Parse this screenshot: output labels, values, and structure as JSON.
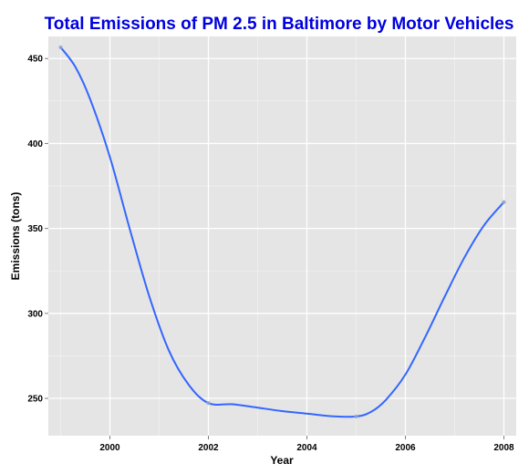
{
  "chart_data": {
    "type": "line",
    "title": "Total Emissions of PM 2.5 in Baltimore by Motor Vehicles",
    "xlabel": "Year",
    "ylabel": "Emissions (tons)",
    "x": [
      1999,
      2002,
      2005,
      2008
    ],
    "series": [
      {
        "values": [
          456.6,
          247.2,
          239.3,
          365.5
        ]
      }
    ],
    "smooth_curve": [
      [
        1999.0,
        456.6
      ],
      [
        1999.3,
        445
      ],
      [
        1999.6,
        426
      ],
      [
        2000.0,
        392
      ],
      [
        2000.4,
        350
      ],
      [
        2000.8,
        310
      ],
      [
        2001.2,
        278
      ],
      [
        2001.6,
        258
      ],
      [
        2002.0,
        247.2
      ],
      [
        2002.5,
        246.5
      ],
      [
        2003.0,
        244.5
      ],
      [
        2003.5,
        242.5
      ],
      [
        2004.0,
        241
      ],
      [
        2004.5,
        239.5
      ],
      [
        2005.0,
        239.3
      ],
      [
        2005.3,
        242
      ],
      [
        2005.6,
        249
      ],
      [
        2006.0,
        264
      ],
      [
        2006.4,
        286
      ],
      [
        2006.8,
        310
      ],
      [
        2007.2,
        333
      ],
      [
        2007.6,
        352
      ],
      [
        2008.0,
        365.5
      ]
    ],
    "xlim": [
      1998.75,
      2008.25
    ],
    "ylim": [
      228,
      463
    ],
    "x_ticks": [
      2000,
      2002,
      2004,
      2006,
      2008
    ],
    "y_ticks": [
      250,
      300,
      350,
      400,
      450
    ],
    "grid": true,
    "colors": {
      "panel": "#e5e5e5",
      "grid_major": "#ffffff",
      "grid_minor": "#f2f2f2",
      "line": "#3366ff",
      "title": "#0000e0"
    }
  }
}
